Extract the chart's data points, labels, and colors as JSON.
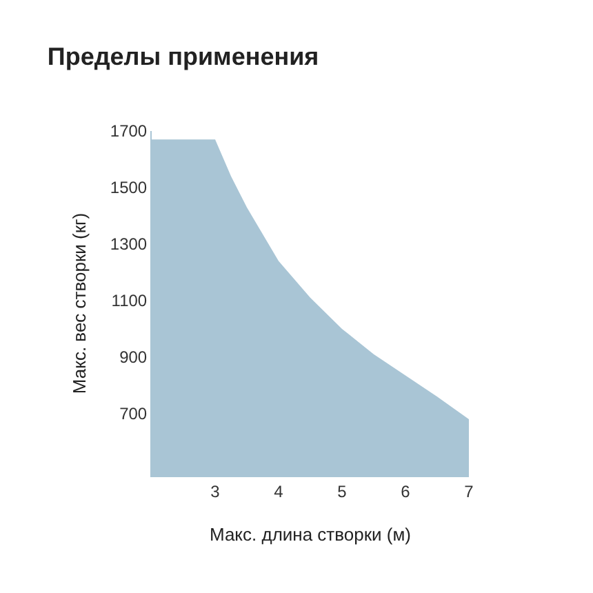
{
  "chart_data": {
    "type": "area",
    "title": "Пределы применения",
    "xlabel": "Макс. длина створки (м)",
    "ylabel": "Макс. вес створки (кг)",
    "x": [
      2,
      3,
      3.25,
      3.5,
      4,
      4.5,
      5,
      5.5,
      6,
      6.5,
      7
    ],
    "series": [
      {
        "color": "#a9c5d5",
        "values": [
          1670,
          1670,
          1540,
          1430,
          1240,
          1110,
          1000,
          910,
          835,
          760,
          680
        ]
      }
    ],
    "xlim": [
      2,
      7
    ],
    "xticks": [
      3,
      4,
      5,
      6,
      7
    ],
    "ylim": [
      480,
      1700
    ],
    "yticks": [
      700,
      900,
      1100,
      1300,
      1500,
      1700
    ]
  }
}
